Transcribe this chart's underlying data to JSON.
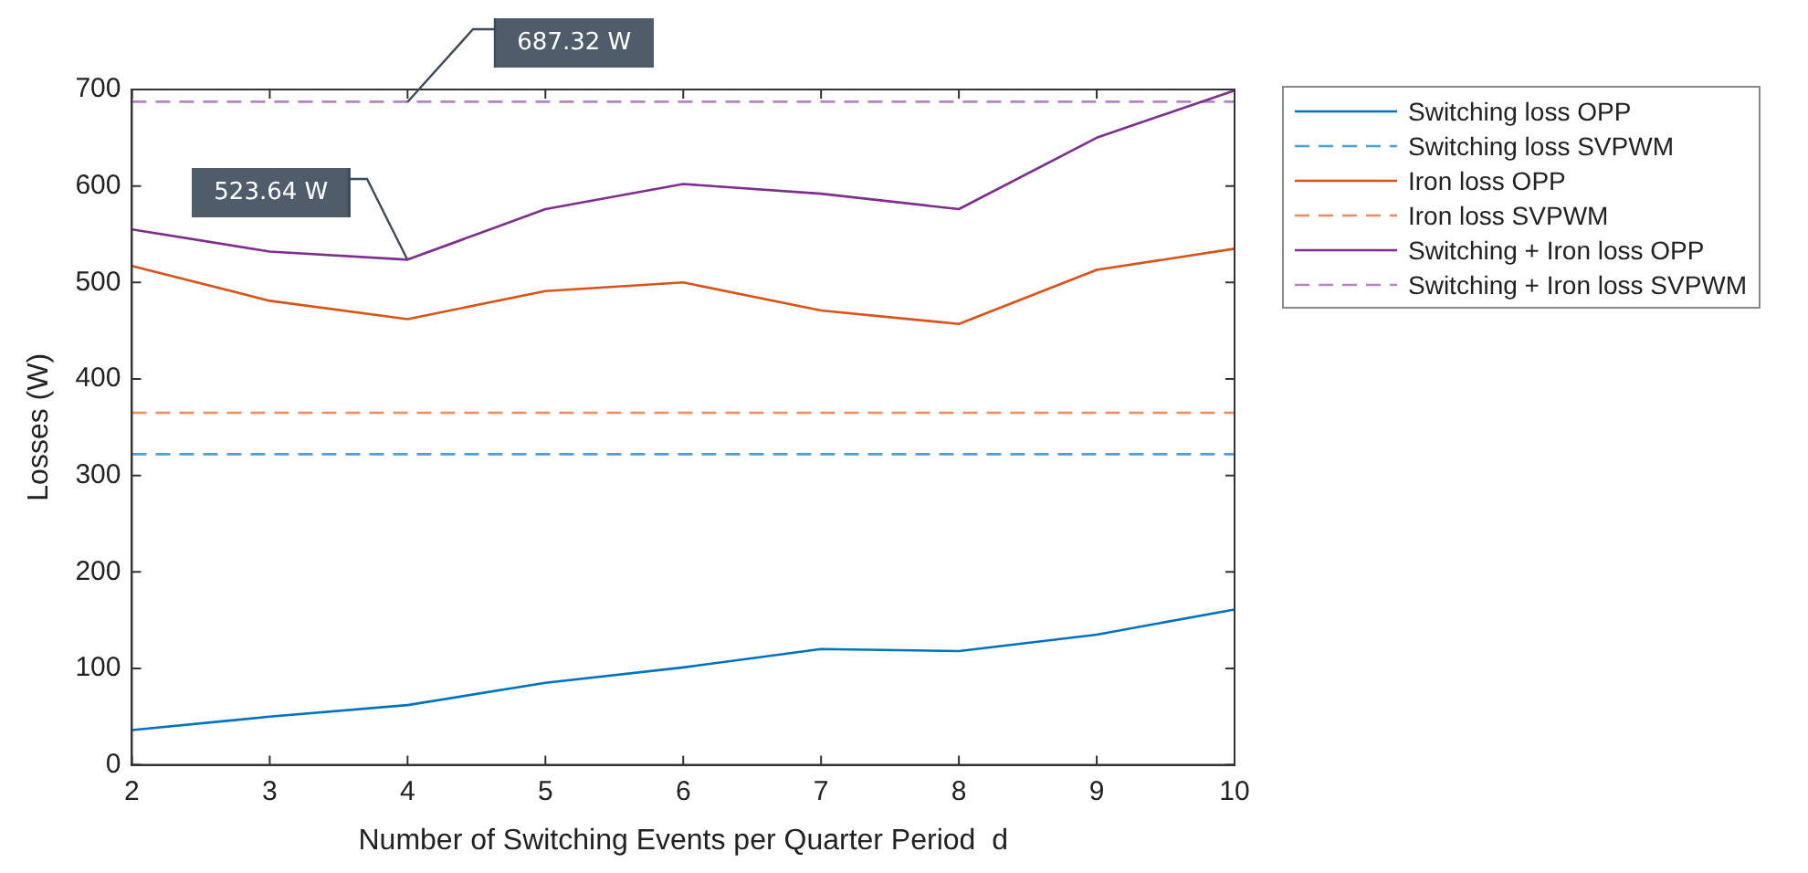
{
  "chart_data": {
    "type": "line",
    "xlabel": "Number of Switching Events per Quarter Period  d",
    "ylabel": "Losses (W)",
    "x": [
      2,
      3,
      4,
      5,
      6,
      7,
      8,
      9,
      10
    ],
    "xlim": [
      2,
      10
    ],
    "xticks": [
      2,
      3,
      4,
      5,
      6,
      7,
      8,
      9,
      10
    ],
    "ylim": [
      0,
      700
    ],
    "yticks": [
      0,
      100,
      200,
      300,
      400,
      500,
      600,
      700
    ],
    "grid": false,
    "legend": "right",
    "marker": "none",
    "series": [
      {
        "name": "Switching loss OPP",
        "color": "#0072bd",
        "line_style": "solid",
        "values": [
          36,
          50,
          62,
          85,
          101,
          120,
          118,
          135,
          161
        ]
      },
      {
        "name": "Switching loss SVPWM",
        "color": "#4d9fd9",
        "line_style": "dashed",
        "values": [
          322,
          322,
          322,
          322,
          322,
          322,
          322,
          322,
          322
        ]
      },
      {
        "name": "Iron loss OPP",
        "color": "#d95319",
        "line_style": "solid",
        "values": [
          517,
          481,
          462,
          491,
          500,
          471,
          457,
          513,
          535
        ]
      },
      {
        "name": "Iron loss SVPWM",
        "color": "#f08a5c",
        "line_style": "dashed",
        "values": [
          365,
          365,
          365,
          365,
          365,
          365,
          365,
          365,
          365
        ]
      },
      {
        "name": "Switching + Iron loss OPP",
        "color": "#7e2f8e",
        "line_style": "solid",
        "values": [
          555,
          532,
          523.64,
          576,
          602,
          592,
          576,
          650,
          699
        ]
      },
      {
        "name": "Switching + Iron loss SVPWM",
        "color": "#b784c4",
        "line_style": "dashed",
        "values": [
          687.32,
          687.32,
          687.32,
          687.32,
          687.32,
          687.32,
          687.32,
          687.32,
          687.32
        ]
      }
    ],
    "annotations": [
      {
        "text": "687.32 W",
        "x": 4,
        "y": 687.32
      },
      {
        "text": "523.64 W",
        "x": 4,
        "y": 523.64
      }
    ]
  }
}
